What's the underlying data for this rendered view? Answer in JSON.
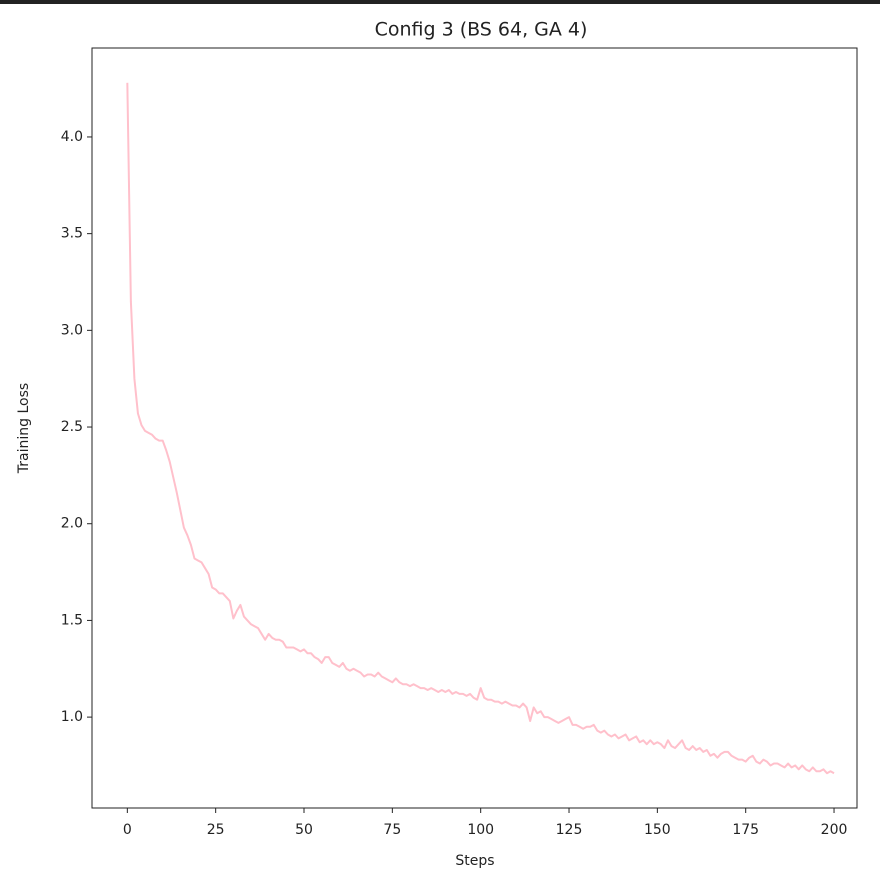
{
  "chart_data": {
    "type": "line",
    "title": "Config 3 (BS 64, GA 4)",
    "x_label": "Steps",
    "y_label": "Training Loss",
    "x": [
      0,
      1,
      2,
      3,
      4,
      5,
      6,
      7,
      8,
      9,
      10,
      11,
      12,
      13,
      14,
      15,
      16,
      17,
      18,
      19,
      20,
      21,
      22,
      23,
      24,
      25,
      26,
      27,
      28,
      29,
      30,
      31,
      32,
      33,
      34,
      35,
      36,
      37,
      38,
      39,
      40,
      41,
      42,
      43,
      44,
      45,
      46,
      47,
      48,
      49,
      50,
      51,
      52,
      53,
      54,
      55,
      56,
      57,
      58,
      59,
      60,
      61,
      62,
      63,
      64,
      65,
      66,
      67,
      68,
      69,
      70,
      71,
      72,
      73,
      74,
      75,
      76,
      77,
      78,
      79,
      80,
      81,
      82,
      83,
      84,
      85,
      86,
      87,
      88,
      89,
      90,
      91,
      92,
      93,
      94,
      95,
      96,
      97,
      98,
      99,
      100,
      101,
      102,
      103,
      104,
      105,
      106,
      107,
      108,
      109,
      110,
      111,
      112,
      113,
      114,
      115,
      116,
      117,
      118,
      119,
      120,
      121,
      122,
      123,
      124,
      125,
      126,
      127,
      128,
      129,
      130,
      131,
      132,
      133,
      134,
      135,
      136,
      137,
      138,
      139,
      140,
      141,
      142,
      143,
      144,
      145,
      146,
      147,
      148,
      149,
      150,
      151,
      152,
      153,
      154,
      155,
      156,
      157,
      158,
      159,
      160,
      161,
      162,
      163,
      164,
      165,
      166,
      167,
      168,
      169,
      170,
      171,
      172,
      173,
      174,
      175,
      176,
      177,
      178,
      179,
      180,
      181,
      182,
      183,
      184,
      185,
      186,
      187,
      188,
      189,
      190,
      191,
      192,
      193,
      194,
      195,
      196,
      197,
      198,
      199,
      200
    ],
    "series": [
      {
        "name": "Training Loss",
        "color": "#ffc0cb",
        "values": [
          4.28,
          3.15,
          2.75,
          2.57,
          2.51,
          2.48,
          2.47,
          2.46,
          2.44,
          2.43,
          2.43,
          2.38,
          2.32,
          2.24,
          2.16,
          2.07,
          1.98,
          1.94,
          1.89,
          1.82,
          1.81,
          1.8,
          1.77,
          1.74,
          1.67,
          1.66,
          1.64,
          1.64,
          1.62,
          1.6,
          1.51,
          1.55,
          1.58,
          1.52,
          1.5,
          1.48,
          1.47,
          1.46,
          1.43,
          1.4,
          1.43,
          1.41,
          1.4,
          1.4,
          1.39,
          1.36,
          1.36,
          1.36,
          1.35,
          1.34,
          1.35,
          1.33,
          1.33,
          1.31,
          1.3,
          1.28,
          1.31,
          1.31,
          1.28,
          1.27,
          1.26,
          1.28,
          1.25,
          1.24,
          1.25,
          1.24,
          1.23,
          1.21,
          1.22,
          1.22,
          1.21,
          1.23,
          1.21,
          1.2,
          1.19,
          1.18,
          1.2,
          1.18,
          1.17,
          1.17,
          1.16,
          1.17,
          1.16,
          1.15,
          1.15,
          1.14,
          1.15,
          1.14,
          1.13,
          1.14,
          1.13,
          1.14,
          1.12,
          1.13,
          1.12,
          1.12,
          1.11,
          1.12,
          1.1,
          1.09,
          1.15,
          1.1,
          1.09,
          1.09,
          1.08,
          1.08,
          1.07,
          1.08,
          1.07,
          1.06,
          1.06,
          1.05,
          1.07,
          1.05,
          0.98,
          1.05,
          1.02,
          1.03,
          1.0,
          1.0,
          0.99,
          0.98,
          0.97,
          0.98,
          0.99,
          1.0,
          0.96,
          0.96,
          0.95,
          0.94,
          0.95,
          0.95,
          0.96,
          0.93,
          0.92,
          0.93,
          0.91,
          0.9,
          0.91,
          0.89,
          0.9,
          0.91,
          0.88,
          0.89,
          0.9,
          0.87,
          0.88,
          0.86,
          0.88,
          0.86,
          0.87,
          0.86,
          0.84,
          0.88,
          0.85,
          0.84,
          0.86,
          0.88,
          0.84,
          0.83,
          0.85,
          0.83,
          0.84,
          0.82,
          0.83,
          0.8,
          0.81,
          0.79,
          0.81,
          0.82,
          0.82,
          0.8,
          0.79,
          0.78,
          0.78,
          0.77,
          0.79,
          0.8,
          0.77,
          0.76,
          0.78,
          0.77,
          0.75,
          0.76,
          0.76,
          0.75,
          0.74,
          0.76,
          0.74,
          0.75,
          0.73,
          0.75,
          0.73,
          0.72,
          0.74,
          0.72,
          0.72,
          0.73,
          0.71,
          0.72,
          0.71
        ]
      }
    ],
    "xlim": [
      -10,
      206.5
    ],
    "xticks": [
      0,
      25,
      50,
      75,
      100,
      125,
      150,
      175,
      200
    ],
    "ylim": [
      0.53,
      4.46
    ],
    "yticks": [
      {
        "value": 1,
        "label": "1.0"
      },
      1.5,
      {
        "value": 2,
        "label": "2.0"
      },
      2.5,
      {
        "value": 3,
        "label": "3.0"
      },
      3.5,
      {
        "value": 4,
        "label": "4.0"
      }
    ],
    "grid": false
  }
}
